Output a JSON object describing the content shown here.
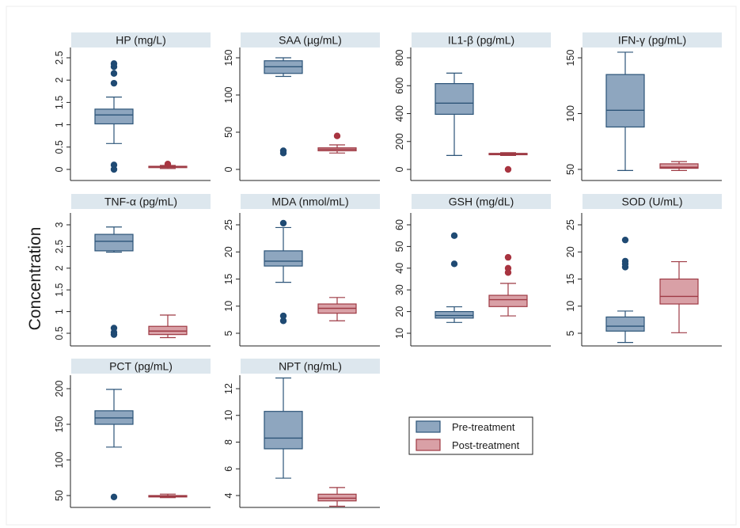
{
  "figure": {
    "ylabel": "Concentration",
    "colors": {
      "pre_fill": "#8ea6bf",
      "pre_stroke": "#2c5478",
      "pre_dot": "#1f4a73",
      "post_fill": "#d9a0a6",
      "post_stroke": "#9e3a44",
      "post_dot": "#a83440",
      "strip": "#dde7ee",
      "axis": "#222222"
    }
  },
  "legend": {
    "pre": "Pre-treatment",
    "post": "Post-treatment"
  },
  "chart_data": [
    {
      "type": "box",
      "title": "HP (mg/L)",
      "ylim": [
        0,
        2.5
      ],
      "yticks": [
        0,
        0.5,
        1,
        1.5,
        2,
        2.5
      ],
      "ytick_labels": [
        "0",
        "0.5",
        "1",
        "1.5",
        "2",
        "2.5"
      ],
      "series": [
        {
          "name": "Pre-treatment",
          "whisker_low": 0.58,
          "q1": 1.02,
          "median": 1.22,
          "q3": 1.35,
          "whisker_high": 1.62,
          "outliers": [
            0.0,
            0.1,
            1.93,
            2.15,
            2.3,
            2.37
          ]
        },
        {
          "name": "Post-treatment",
          "whisker_low": 0.02,
          "q1": 0.04,
          "median": 0.06,
          "q3": 0.07,
          "whisker_high": 0.09,
          "outliers": [
            0.12
          ]
        }
      ]
    },
    {
      "type": "box",
      "title": "SAA (µg/mL)",
      "ylim": [
        0,
        150
      ],
      "yticks": [
        0,
        50,
        100,
        150
      ],
      "ytick_labels": [
        "0",
        "50",
        "100",
        "150"
      ],
      "series": [
        {
          "name": "Pre-treatment",
          "whisker_low": 125,
          "q1": 129,
          "median": 138,
          "q3": 146,
          "whisker_high": 150,
          "outliers": [
            22,
            25
          ]
        },
        {
          "name": "Post-treatment",
          "whisker_low": 22,
          "q1": 25,
          "median": 27,
          "q3": 29,
          "whisker_high": 33,
          "outliers": [
            45
          ]
        }
      ]
    },
    {
      "type": "box",
      "title": "IL1-β (pg/mL)",
      "ylim": [
        0,
        800
      ],
      "yticks": [
        0,
        200,
        400,
        600,
        800
      ],
      "ytick_labels": [
        "0",
        "200",
        "400",
        "600",
        "800"
      ],
      "series": [
        {
          "name": "Pre-treatment",
          "whisker_low": 100,
          "q1": 395,
          "median": 475,
          "q3": 615,
          "whisker_high": 690,
          "outliers": []
        },
        {
          "name": "Post-treatment",
          "whisker_low": 100,
          "q1": 105,
          "median": 110,
          "q3": 115,
          "whisker_high": 120,
          "outliers": [
            0
          ]
        }
      ]
    },
    {
      "type": "box",
      "title": "IFN-γ (pg/mL)",
      "ylim": [
        50,
        150
      ],
      "yticks": [
        50,
        100,
        150
      ],
      "ytick_labels": [
        "50",
        "100",
        "150"
      ],
      "series": [
        {
          "name": "Pre-treatment",
          "whisker_low": 49,
          "q1": 88,
          "median": 103,
          "q3": 135,
          "whisker_high": 155,
          "outliers": []
        },
        {
          "name": "Post-treatment",
          "whisker_low": 49,
          "q1": 51,
          "median": 52,
          "q3": 55,
          "whisker_high": 57,
          "outliers": []
        }
      ]
    },
    {
      "type": "box",
      "title": "TNF-α (pg/mL)",
      "ylim": [
        0.5,
        3
      ],
      "yticks": [
        0.5,
        1,
        1.5,
        2,
        2.5,
        3
      ],
      "ytick_labels": [
        "0.5",
        "1",
        "1.5",
        "2",
        "2.5",
        "3"
      ],
      "series": [
        {
          "name": "Pre-treatment",
          "whisker_low": 2.37,
          "q1": 2.4,
          "median": 2.62,
          "q3": 2.78,
          "whisker_high": 2.95,
          "outliers": [
            0.47,
            0.52,
            0.62
          ]
        },
        {
          "name": "Post-treatment",
          "whisker_low": 0.4,
          "q1": 0.47,
          "median": 0.55,
          "q3": 0.66,
          "whisker_high": 0.92,
          "outliers": []
        }
      ]
    },
    {
      "type": "box",
      "title": "MDA (nmol/mL)",
      "ylim": [
        5,
        25
      ],
      "yticks": [
        5,
        10,
        15,
        20,
        25
      ],
      "ytick_labels": [
        "5",
        "10",
        "15",
        "20",
        "25"
      ],
      "series": [
        {
          "name": "Pre-treatment",
          "whisker_low": 14.4,
          "q1": 17.4,
          "median": 18.3,
          "q3": 20.2,
          "whisker_high": 24.5,
          "outliers": [
            7.3,
            8.2,
            25.3
          ]
        },
        {
          "name": "Post-treatment",
          "whisker_low": 7.3,
          "q1": 8.7,
          "median": 9.6,
          "q3": 10.4,
          "whisker_high": 11.6,
          "outliers": []
        }
      ]
    },
    {
      "type": "box",
      "title": "GSH (mg/dL)",
      "ylim": [
        10,
        60
      ],
      "yticks": [
        10,
        20,
        30,
        40,
        50,
        60
      ],
      "ytick_labels": [
        "10",
        "20",
        "30",
        "40",
        "50",
        "60"
      ],
      "series": [
        {
          "name": "Pre-treatment",
          "whisker_low": 15,
          "q1": 17,
          "median": 18.2,
          "q3": 20,
          "whisker_high": 22.2,
          "outliers": [
            42,
            55
          ]
        },
        {
          "name": "Post-treatment",
          "whisker_low": 18,
          "q1": 22.3,
          "median": 25.5,
          "q3": 27.5,
          "whisker_high": 33,
          "outliers": [
            38,
            40,
            45
          ]
        }
      ]
    },
    {
      "type": "box",
      "title": "SOD (U/mL)",
      "ylim": [
        5,
        25
      ],
      "yticks": [
        5,
        10,
        15,
        20,
        25
      ],
      "ytick_labels": [
        "5",
        "10",
        "15",
        "20",
        "25"
      ],
      "series": [
        {
          "name": "Pre-treatment",
          "whisker_low": 3.3,
          "q1": 5.4,
          "median": 6.3,
          "q3": 8,
          "whisker_high": 9.1,
          "outliers": [
            17.2,
            17.8,
            18.3,
            22.2
          ]
        },
        {
          "name": "Post-treatment",
          "whisker_low": 5.1,
          "q1": 10.4,
          "median": 11.8,
          "q3": 15,
          "whisker_high": 18.2,
          "outliers": []
        }
      ]
    },
    {
      "type": "box",
      "title": "PCT (pg/mL)",
      "ylim": [
        50,
        200
      ],
      "yticks": [
        50,
        100,
        150,
        200
      ],
      "ytick_labels": [
        "50",
        "100",
        "150",
        "200"
      ],
      "series": [
        {
          "name": "Pre-treatment",
          "whisker_low": 118,
          "q1": 150,
          "median": 159,
          "q3": 169,
          "whisker_high": 199,
          "outliers": [
            48
          ]
        },
        {
          "name": "Post-treatment",
          "whisker_low": 47,
          "q1": 48,
          "median": 49,
          "q3": 50,
          "whisker_high": 52,
          "outliers": []
        }
      ]
    },
    {
      "type": "box",
      "title": "NPT (ng/mL)",
      "ylim": [
        4,
        12
      ],
      "yticks": [
        4,
        6,
        8,
        10,
        12
      ],
      "ytick_labels": [
        "4",
        "6",
        "8",
        "10",
        "12"
      ],
      "series": [
        {
          "name": "Pre-treatment",
          "whisker_low": 5.3,
          "q1": 7.5,
          "median": 8.3,
          "q3": 10.3,
          "whisker_high": 12.8,
          "outliers": []
        },
        {
          "name": "Post-treatment",
          "whisker_low": 3.2,
          "q1": 3.6,
          "median": 3.8,
          "q3": 4.1,
          "whisker_high": 4.6,
          "outliers": []
        }
      ]
    }
  ]
}
